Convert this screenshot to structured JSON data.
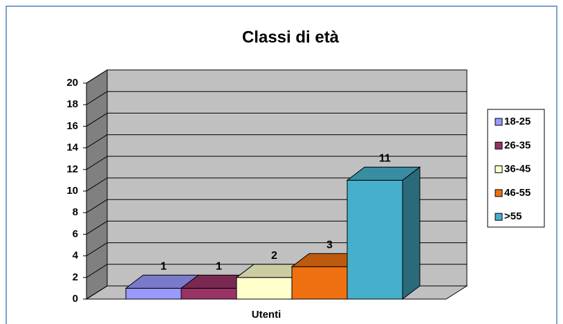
{
  "chart_data": {
    "type": "bar3d",
    "title": "Classi di età",
    "categories": [
      "Utenti"
    ],
    "series": [
      {
        "name": "18-25",
        "color": "#9999ff",
        "values": [
          1
        ]
      },
      {
        "name": "26-35",
        "color": "#993366",
        "values": [
          1
        ]
      },
      {
        "name": "36-45",
        "color": "#ffffcc",
        "values": [
          2
        ]
      },
      {
        "name": "46-55",
        "color": "#ee7010",
        "values": [
          3
        ]
      },
      {
        "name": ">55",
        "color": "#46b0cc",
        "values": [
          11
        ]
      }
    ],
    "ylim": [
      0,
      20
    ],
    "yticks": [
      0,
      2,
      4,
      6,
      8,
      10,
      12,
      14,
      16,
      18,
      20
    ],
    "grid": true,
    "legend": "right"
  }
}
